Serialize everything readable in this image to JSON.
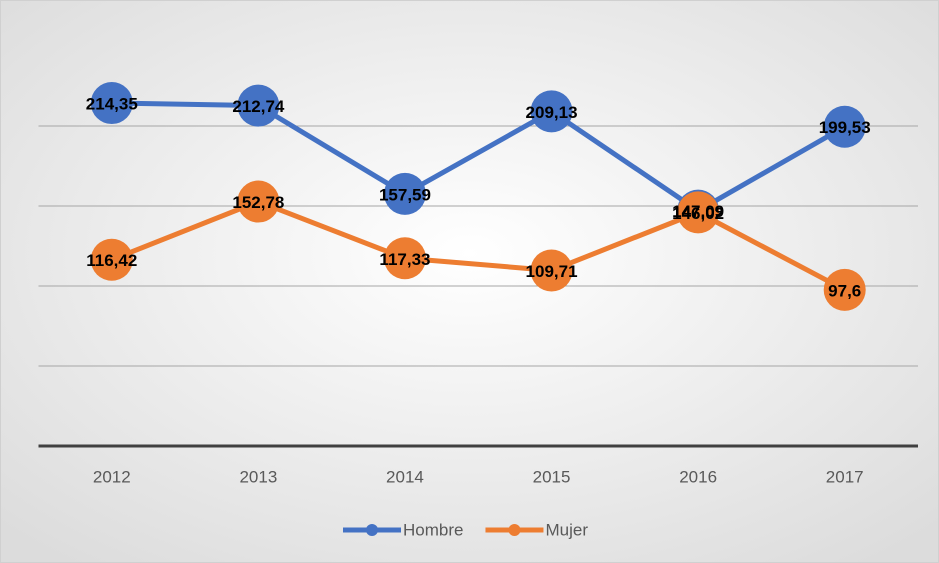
{
  "chart_data": {
    "type": "line",
    "categories": [
      "2012",
      "2013",
      "2014",
      "2015",
      "2016",
      "2017"
    ],
    "series": [
      {
        "name": "Hombre",
        "color": "#4472c4",
        "values": [
          214.35,
          212.74,
          157.59,
          209.13,
          147.09,
          199.53
        ],
        "value_labels": [
          "214,35",
          "212,74",
          "157,59",
          "209,13",
          "147,09",
          "199,53"
        ]
      },
      {
        "name": "Mujer",
        "color": "#ed7d31",
        "values": [
          116.42,
          152.78,
          117.33,
          109.71,
          146.02,
          97.6
        ],
        "value_labels": [
          "116,42",
          "152,78",
          "117,33",
          "109,71",
          "146,02",
          "97,6"
        ]
      }
    ],
    "ylim": [
      0,
      250
    ],
    "yticks": [
      0,
      50,
      100,
      150,
      200
    ],
    "grid": true,
    "legend": "bottom"
  }
}
